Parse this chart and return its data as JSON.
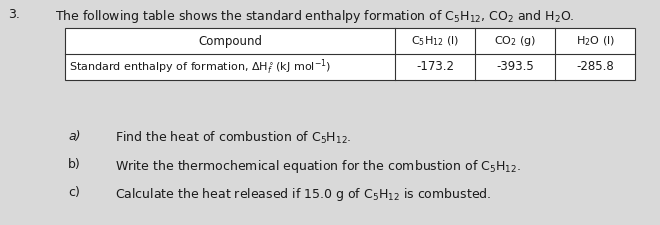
{
  "question_number": "3.",
  "bg_color": "#d9d9d9",
  "text_color": "#1a1a1a",
  "intro_text": "The following table shows the standard enthalpy formation of C$_5$H$_{12}$, CO$_2$ and H$_2$O.",
  "table": {
    "col1_header": "Compound",
    "col2_header": "C$_5$H$_{12}$ (l)",
    "col3_header": "CO$_2$ (g)",
    "col4_header": "H$_2$O (l)",
    "row1_label": "Standard enthalpy of formation, $\\Delta$H$^\\circ_f$(kJ mol$^{-1}$)",
    "val1": "-173.2",
    "val2": "-393.5",
    "val3": "-285.8"
  },
  "items": [
    {
      "label": "a)",
      "text": "Find the heat of combustion of C$_5$H$_{12}$."
    },
    {
      "label": "b)",
      "text": "Write the thermochemical equation for the combustion of C$_5$H$_{12}$."
    },
    {
      "label": "c)",
      "text": "Calculate the heat released if 15.0 g of C$_5$H$_{12}$ is combusted."
    }
  ],
  "font_size": 9.0,
  "small_font_size": 8.5
}
